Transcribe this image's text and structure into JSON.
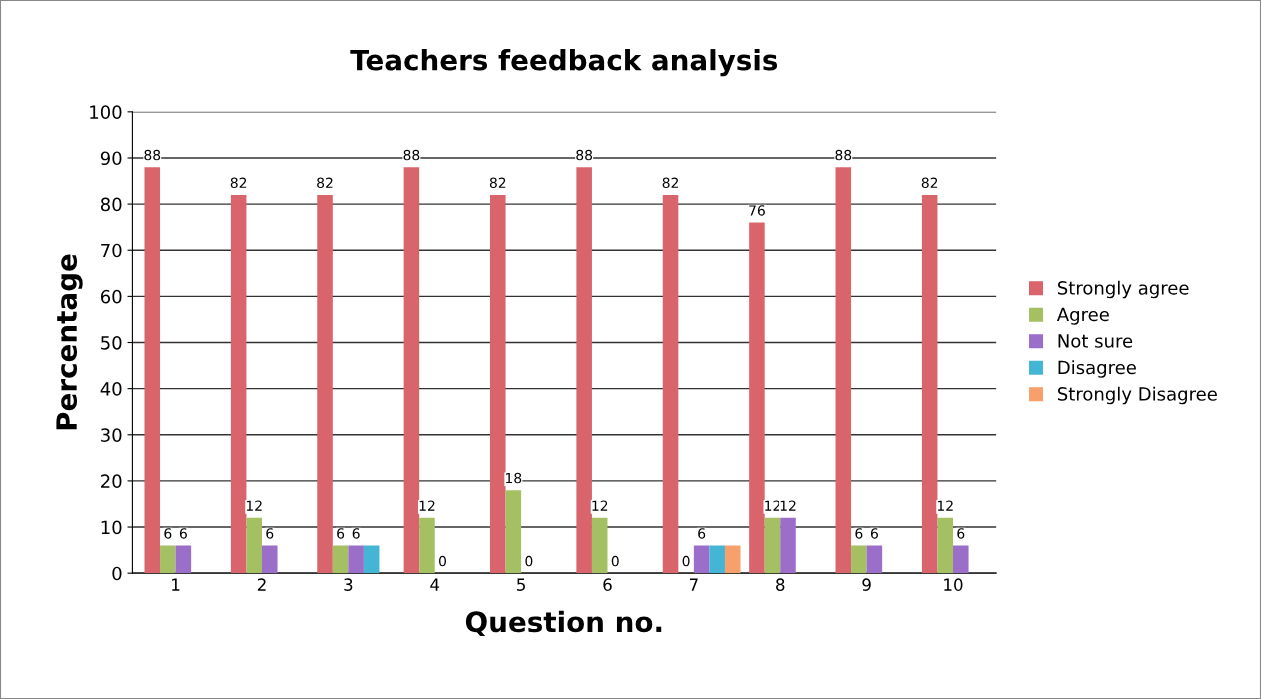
{
  "chart_data": {
    "type": "bar",
    "title": "Teachers feedback analysis",
    "xlabel": "Question no.",
    "ylabel": "Percentage",
    "categories": [
      "1",
      "2",
      "3",
      "4",
      "5",
      "6",
      "7",
      "8",
      "9",
      "10"
    ],
    "series": [
      {
        "name": "Strongly agree",
        "color": "#d9646b",
        "values": [
          88,
          82,
          82,
          88,
          82,
          88,
          82,
          76,
          88,
          82
        ],
        "value_labels": [
          "88",
          "82",
          "82",
          "88",
          "82",
          "88",
          "82",
          "76",
          "88",
          "82"
        ]
      },
      {
        "name": "Agree",
        "color": "#a4c063",
        "values": [
          6,
          12,
          6,
          12,
          18,
          12,
          0,
          12,
          6,
          12
        ],
        "value_labels": [
          "6",
          "12",
          "6",
          "12",
          "18",
          "12",
          "0",
          "12",
          "6",
          "12"
        ]
      },
      {
        "name": "Not sure",
        "color": "#9b6fc9",
        "values": [
          6,
          6,
          6,
          0,
          0,
          0,
          6,
          12,
          6,
          6
        ],
        "value_labels": [
          "6",
          "6",
          "6",
          "0",
          "0",
          "0",
          "6",
          "12",
          "6",
          "6"
        ]
      },
      {
        "name": "Disagree",
        "color": "#45b5d6",
        "values": [
          0,
          0,
          6,
          0,
          0,
          0,
          6,
          0,
          0,
          0
        ]
      },
      {
        "name": "Strongly Disagree",
        "color": "#f7a06b",
        "values": [
          0,
          0,
          0,
          0,
          0,
          0,
          6,
          0,
          0,
          0
        ]
      }
    ],
    "ylim": [
      0,
      100
    ],
    "yticks": [
      0,
      10,
      20,
      30,
      40,
      50,
      60,
      70,
      80,
      90,
      100
    ],
    "grid": "y",
    "legend": "right"
  }
}
